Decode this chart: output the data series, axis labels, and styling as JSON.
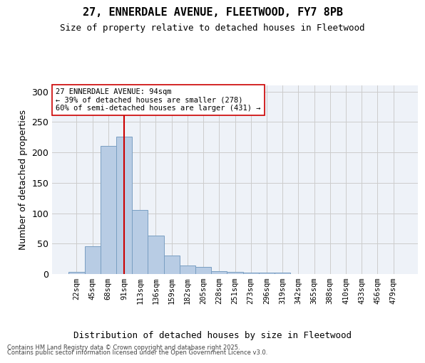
{
  "title_line1": "27, ENNERDALE AVENUE, FLEETWOOD, FY7 8PB",
  "title_line2": "Size of property relative to detached houses in Fleetwood",
  "xlabel": "Distribution of detached houses by size in Fleetwood",
  "ylabel": "Number of detached properties",
  "categories": [
    "22sqm",
    "45sqm",
    "68sqm",
    "91sqm",
    "113sqm",
    "136sqm",
    "159sqm",
    "182sqm",
    "205sqm",
    "228sqm",
    "251sqm",
    "273sqm",
    "296sqm",
    "319sqm",
    "342sqm",
    "365sqm",
    "388sqm",
    "410sqm",
    "433sqm",
    "456sqm",
    "479sqm"
  ],
  "bar_heights": [
    3,
    46,
    211,
    226,
    105,
    63,
    31,
    14,
    12,
    5,
    3,
    2,
    2,
    2,
    0,
    0,
    0,
    0,
    0,
    0,
    0
  ],
  "bar_color": "#b8cce4",
  "bar_edge_color": "#7a9fc2",
  "vline_index": 3.0,
  "vline_color": "#cc0000",
  "annotation_text": "27 ENNERDALE AVENUE: 94sqm\n← 39% of detached houses are smaller (278)\n60% of semi-detached houses are larger (431) →",
  "annotation_edge_color": "#cc0000",
  "ylim": [
    0,
    310
  ],
  "yticks": [
    0,
    50,
    100,
    150,
    200,
    250,
    300
  ],
  "grid_color": "#cccccc",
  "bg_color": "#eef2f8",
  "footer_line1": "Contains HM Land Registry data © Crown copyright and database right 2025.",
  "footer_line2": "Contains public sector information licensed under the Open Government Licence v3.0."
}
